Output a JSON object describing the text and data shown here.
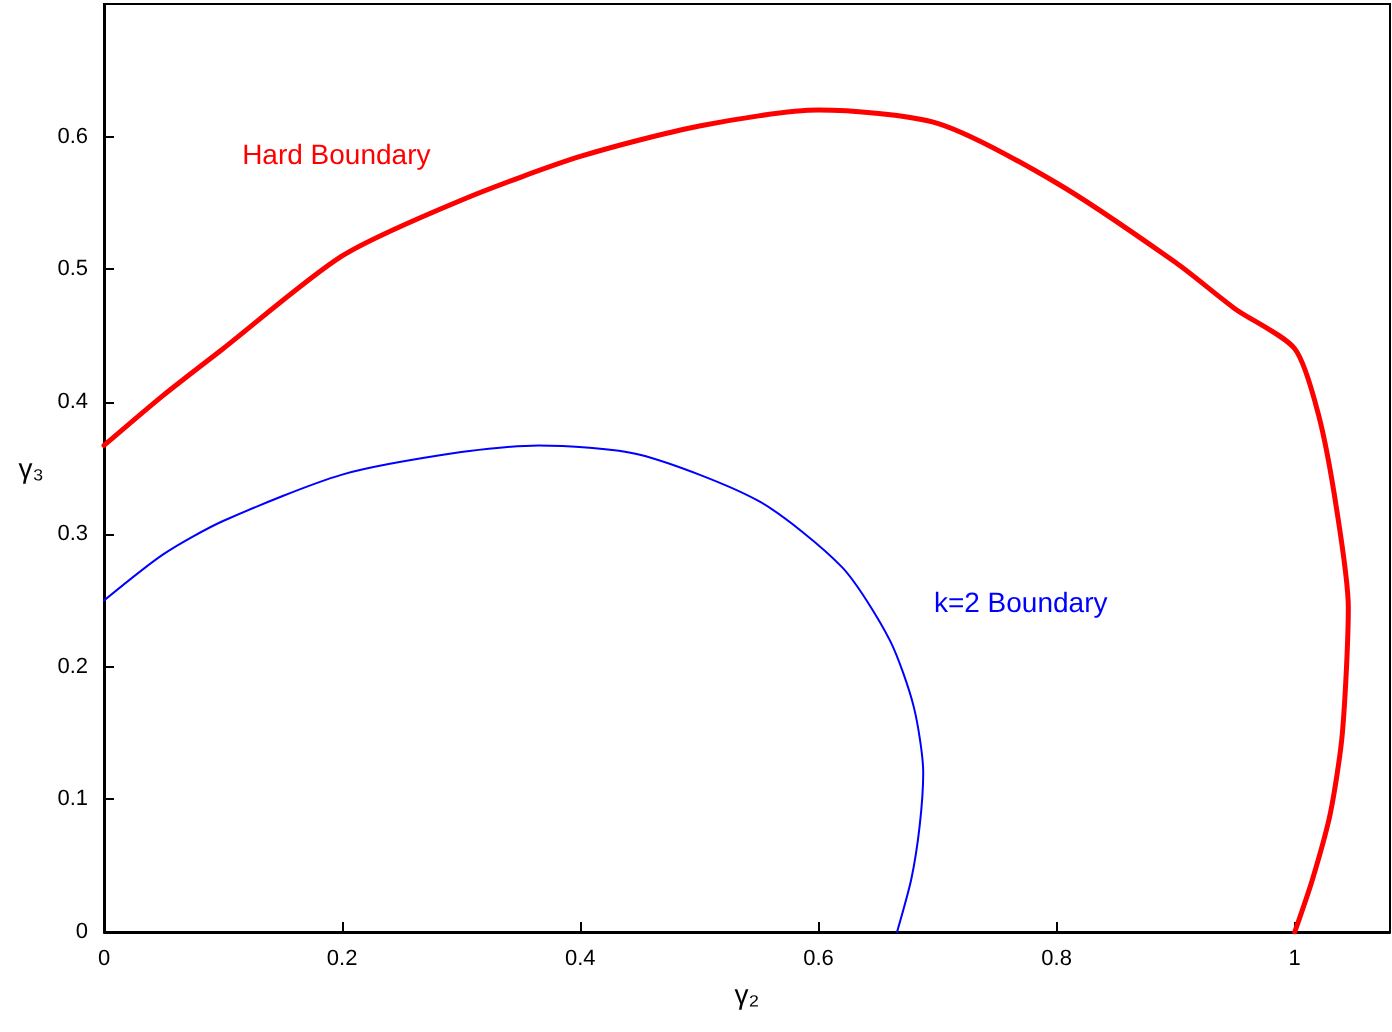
{
  "chart_data": {
    "type": "line",
    "xlabel": "γ₂",
    "ylabel": "γ₃",
    "xlim": [
      0,
      1.08
    ],
    "ylim": [
      0,
      0.7
    ],
    "xticks": [
      0,
      0.2,
      0.4,
      0.6,
      0.8,
      1
    ],
    "yticks": [
      0,
      0.1,
      0.2,
      0.3,
      0.4,
      0.5,
      0.6
    ],
    "grid": false,
    "marker": "none",
    "line_style": "solid",
    "series": [
      {
        "name": "Hard Boundary",
        "color": "#ff0000",
        "x": [
          0,
          0.05,
          0.1,
          0.2,
          0.3,
          0.4,
          0.5,
          0.6,
          0.7,
          0.8,
          0.9,
          0.95,
          1.0,
          1.02,
          1.035,
          1.045,
          1.04,
          1.03,
          1.015,
          1.0
        ],
        "values": [
          0.367,
          0.405,
          0.44,
          0.51,
          0.552,
          0.585,
          0.608,
          0.62,
          0.61,
          0.565,
          0.505,
          0.47,
          0.44,
          0.39,
          0.32,
          0.245,
          0.15,
          0.09,
          0.04,
          0
        ]
      },
      {
        "name": "k=2 Boundary",
        "color": "#0000ff",
        "x": [
          0,
          0.05,
          0.1,
          0.2,
          0.3,
          0.365,
          0.45,
          0.55,
          0.62,
          0.66,
          0.68,
          0.688,
          0.685,
          0.678,
          0.666
        ],
        "values": [
          0.25,
          0.285,
          0.31,
          0.345,
          0.362,
          0.367,
          0.36,
          0.325,
          0.275,
          0.22,
          0.17,
          0.12,
          0.08,
          0.04,
          0
        ]
      }
    ]
  }
}
